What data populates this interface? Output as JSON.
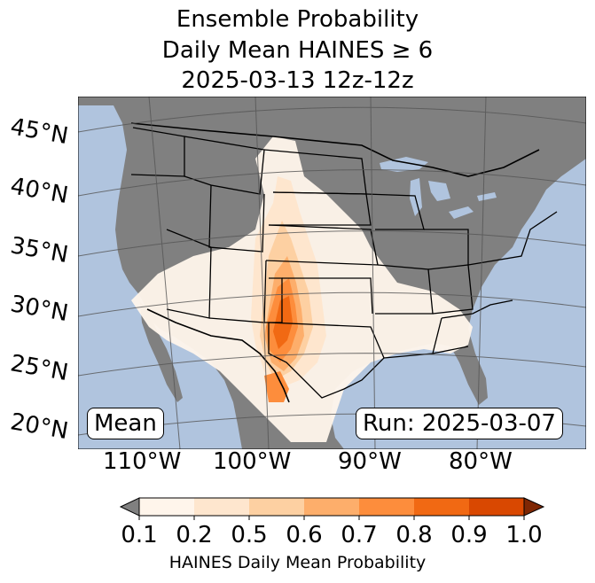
{
  "title": {
    "line1": "Ensemble Probability",
    "line2": "Daily Mean HAINES ≥ 6",
    "line3": "2025-03-13 12z-12z"
  },
  "map": {
    "lat_labels": [
      "45°N",
      "40°N",
      "35°N",
      "30°N",
      "25°N",
      "20°N"
    ],
    "lon_labels": [
      "110°W",
      "100°W",
      "90°W",
      "80°W"
    ],
    "ocean_color": "#b0c4de",
    "land_color": "#808080",
    "mean_label": "Mean",
    "run_label": "Run: 2025-03-07"
  },
  "colorbar": {
    "ticks": [
      "0.1",
      "0.2",
      "0.5",
      "0.6",
      "0.7",
      "0.8",
      "0.9",
      "1.0"
    ],
    "colors": [
      "#fff5eb",
      "#fee6ce",
      "#fdd0a2",
      "#fdae6b",
      "#fd8d3c",
      "#f16913",
      "#d94801"
    ],
    "under_color": "#808080",
    "over_color": "#7f2704",
    "label": "HAINES Daily Mean Probability"
  }
}
